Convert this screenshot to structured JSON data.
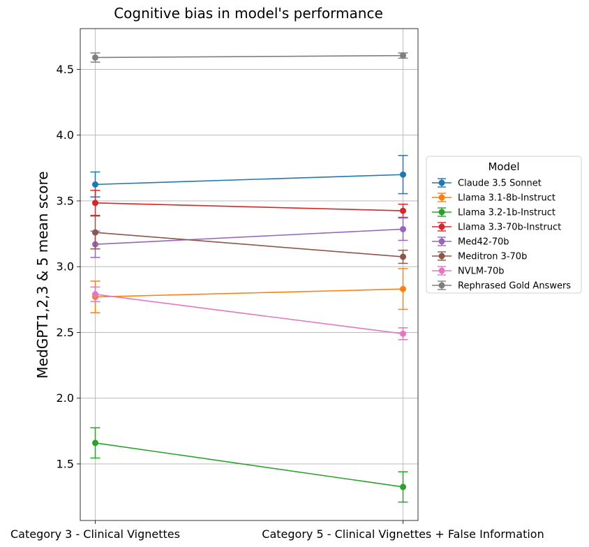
{
  "chart_data": {
    "type": "line",
    "title": "Cognitive bias in model's performance",
    "xlabel": "",
    "ylabel": "MedGPT1,2,3 & 5 mean score",
    "categories": [
      "Category 3 - Clinical Vignettes",
      "Category 5 - Clinical Vignettes + False Information"
    ],
    "ylim": [
      1.07,
      4.81
    ],
    "yticks": [
      1.5,
      2.0,
      2.5,
      3.0,
      3.5,
      4.0,
      4.5
    ],
    "ytick_labels": [
      "1.5",
      "2.0",
      "2.5",
      "3.0",
      "3.5",
      "4.0",
      "4.5"
    ],
    "grid": true,
    "legend": {
      "title": "Model",
      "placement": "center-right-outside"
    },
    "series": [
      {
        "name": "Claude 3.5 Sonnet",
        "color": "#1f77b4",
        "values": [
          3.625,
          3.7
        ],
        "errors": [
          0.095,
          0.145
        ]
      },
      {
        "name": "Llama 3.1-8b-Instruct",
        "color": "#ff7f0e",
        "values": [
          2.77,
          2.83
        ],
        "errors": [
          0.12,
          0.155
        ]
      },
      {
        "name": "Llama 3.2-1b-Instruct",
        "color": "#2ca02c",
        "values": [
          1.66,
          1.325
        ],
        "errors": [
          0.115,
          0.115
        ]
      },
      {
        "name": "Llama 3.3-70b-Instruct",
        "color": "#d62728",
        "values": [
          3.485,
          3.425
        ],
        "errors": [
          0.095,
          0.05
        ]
      },
      {
        "name": "Med42-70b",
        "color": "#9467bd",
        "values": [
          3.17,
          3.285
        ],
        "errors": [
          0.1,
          0.085
        ]
      },
      {
        "name": "Meditron 3-70b",
        "color": "#8c564b",
        "values": [
          3.26,
          3.075
        ],
        "errors": [
          0.125,
          0.05
        ]
      },
      {
        "name": "NVLM-70b",
        "color": "#e377c2",
        "values": [
          2.79,
          2.49
        ],
        "errors": [
          0.055,
          0.045
        ]
      },
      {
        "name": "Rephrased Gold Answers",
        "color": "#7f7f7f",
        "values": [
          4.59,
          4.605
        ],
        "errors": [
          0.035,
          0.02
        ]
      }
    ]
  }
}
